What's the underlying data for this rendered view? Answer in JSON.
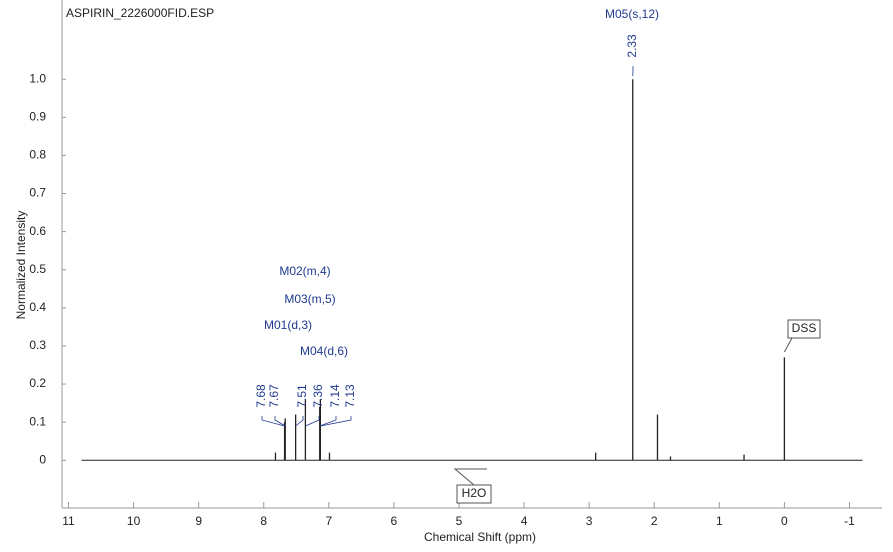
{
  "chart_data": {
    "type": "spectrum",
    "title": "ASPIRIN_2226000FID.ESP",
    "x_label": "Chemical  Shift  (ppm)",
    "y_label": "Normalized  Intensity",
    "x": [
      7.82,
      7.68,
      7.67,
      7.51,
      7.36,
      7.14,
      7.13,
      6.99,
      2.9,
      2.33,
      1.95,
      1.75,
      0.62,
      0
    ],
    "values": [
      0.02,
      0.1,
      0.11,
      0.12,
      0.16,
      0.14,
      0.16,
      0.02,
      0.02,
      1,
      0.12,
      0.01,
      0.015,
      0.27
    ],
    "color": "#222222",
    "xlim": [
      11.1,
      -1.5
    ],
    "xticks": [
      11,
      10,
      9,
      8,
      7,
      6,
      5,
      4,
      3,
      2,
      1,
      0,
      -1
    ],
    "ylim": [
      -0.12,
      1.2
    ],
    "yticks": [
      0,
      0.1,
      0.2,
      0.3,
      0.4,
      0.5,
      0.6,
      0.7,
      0.8,
      0.9,
      {
        "value": 1,
        "label": "1.0"
      }
    ],
    "picked_peaks": [
      7.68,
      7.67,
      7.51,
      7.36,
      7.14,
      7.13,
      2.33
    ],
    "multiplet_labels": [
      "M01(d,3)",
      "M02(m,4)",
      "M03(m,5)",
      "M04(d,6)",
      "M05(s,12)"
    ],
    "reference_labels": [
      "DSS",
      "H2O"
    ]
  }
}
